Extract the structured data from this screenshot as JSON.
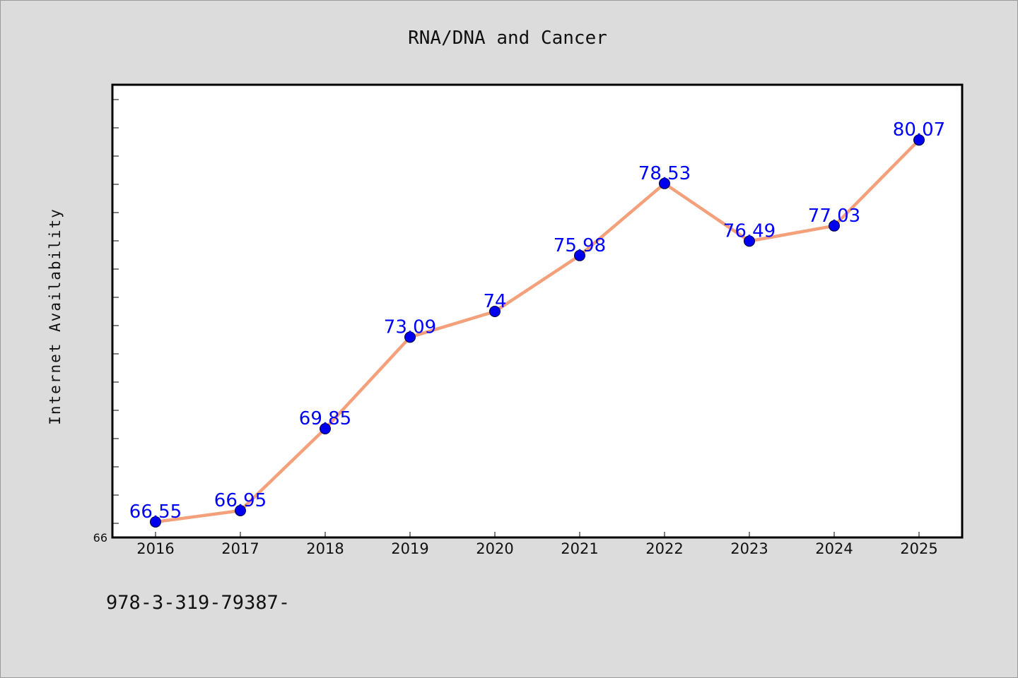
{
  "chart_data": {
    "type": "line",
    "title": "RNA/DNA and Cancer",
    "xlabel": "",
    "ylabel": "Internet Availability",
    "categories": [
      "2016",
      "2017",
      "2018",
      "2019",
      "2020",
      "2021",
      "2022",
      "2023",
      "2024",
      "2025"
    ],
    "series": [
      {
        "values": [
          66.55,
          66.95,
          69.85,
          73.09,
          74,
          75.98,
          78.53,
          76.49,
          77.03,
          80.07
        ],
        "data_labels": [
          "66.55",
          "66.95",
          "69.85",
          "73.09",
          "74",
          "75.98",
          "78.53",
          "76.49",
          "77.03",
          "80.07"
        ]
      }
    ],
    "ylim": [
      66,
      82
    ],
    "ytick_labels": [
      "66"
    ],
    "grid": false,
    "legend": "none",
    "footnote": "978-3-319-79387-",
    "colors": {
      "background": "#dcdcdc",
      "plot_area": "#ffffff",
      "line": "#f4a07a",
      "marker": "#0000ee",
      "data_label": "#0000ff"
    }
  }
}
